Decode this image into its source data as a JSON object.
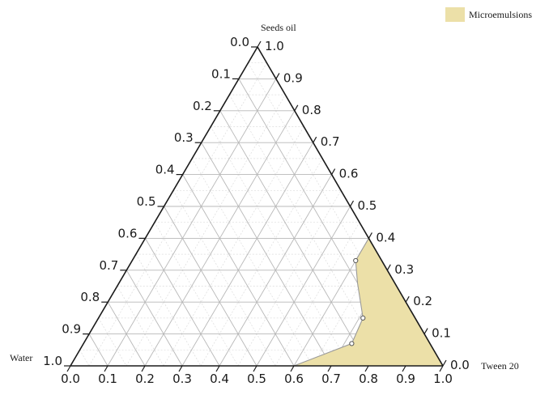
{
  "chart_data": {
    "type": "ternary",
    "vertices": {
      "top": "Seeds oil",
      "left": "Water",
      "right": "Tween 20"
    },
    "ticks": [
      0.0,
      0.1,
      0.2,
      0.3,
      0.4,
      0.5,
      0.6,
      0.7,
      0.8,
      0.9,
      1.0
    ],
    "tick_labels": [
      "0.0",
      "0.1",
      "0.2",
      "0.3",
      "0.4",
      "0.5",
      "0.6",
      "0.7",
      "0.8",
      "0.9",
      "1.0"
    ],
    "grid": true,
    "legend": {
      "position": "top-right",
      "label": "Microemulsions",
      "color": "#ece0a8"
    },
    "region": {
      "name": "Microemulsions",
      "color": "#ece0a8",
      "edge_color": "#9a9a9a",
      "points": [
        {
          "oil": 0.4,
          "tween": 0.6,
          "water": 0.0
        },
        {
          "oil": 0.33,
          "tween": 0.6,
          "water": 0.07
        },
        {
          "oil": 0.26,
          "tween": 0.64,
          "water": 0.1
        },
        {
          "oil": 0.15,
          "tween": 0.71,
          "water": 0.14
        },
        {
          "oil": 0.07,
          "tween": 0.72,
          "water": 0.21
        },
        {
          "oil": 0.0,
          "tween": 0.6,
          "water": 0.4
        },
        {
          "oil": 0.0,
          "tween": 1.0,
          "water": 0.0
        }
      ],
      "markers": [
        {
          "oil": 0.33,
          "tween": 0.6,
          "water": 0.07
        },
        {
          "oil": 0.15,
          "tween": 0.71,
          "water": 0.14
        },
        {
          "oil": 0.07,
          "tween": 0.72,
          "water": 0.21
        }
      ]
    },
    "axis_color": "#1a1a1a",
    "grid_color": "#b8b8b8",
    "minor_grid_color": "#dcdcdc"
  }
}
